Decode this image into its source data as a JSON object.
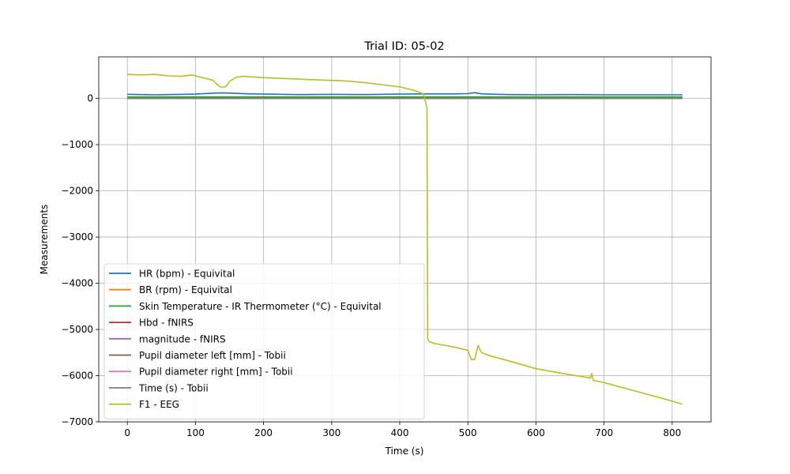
{
  "chart_data": {
    "type": "line",
    "title": "Trial ID: 05-02",
    "xlabel": "Time (s)",
    "ylabel": "Measurements",
    "xlim": [
      -42,
      857
    ],
    "ylim": [
      -7000,
      900
    ],
    "xticks": [
      0,
      100,
      200,
      300,
      400,
      500,
      600,
      700,
      800
    ],
    "yticks": [
      -7000,
      -6000,
      -5000,
      -4000,
      -3000,
      -2000,
      -1000,
      0
    ],
    "ytick_labels": [
      "−7000",
      "−6000",
      "−5000",
      "−4000",
      "−3000",
      "−2000",
      "−1000",
      "0"
    ],
    "grid": true,
    "legend_position": "lower-left",
    "series": [
      {
        "name": "HR (bpm) - Equivital",
        "color": "#1f77b4",
        "x": [
          0,
          20,
          40,
          60,
          80,
          100,
          120,
          140,
          160,
          180,
          200,
          250,
          300,
          350,
          400,
          450,
          480,
          500,
          510,
          520,
          530,
          560,
          600,
          650,
          700,
          750,
          800,
          815
        ],
        "y": [
          90,
          85,
          80,
          85,
          90,
          95,
          110,
          120,
          110,
          100,
          95,
          85,
          90,
          85,
          95,
          100,
          100,
          105,
          125,
          100,
          95,
          85,
          80,
          85,
          80,
          80,
          80,
          80
        ]
      },
      {
        "name": "BR (rpm) - Equivital",
        "color": "#ff7f0e",
        "x": [
          0,
          815
        ],
        "y": [
          20,
          20
        ]
      },
      {
        "name": "Skin Temperature - IR Thermometer (°C) - Equivital",
        "color": "#2ca02c",
        "x": [
          0,
          815
        ],
        "y": [
          33,
          33
        ]
      },
      {
        "name": "Hbd - fNIRS",
        "color": "#d62728",
        "x": [
          0,
          815
        ],
        "y": [
          0,
          0
        ]
      },
      {
        "name": "magnitude - fNIRS",
        "color": "#9467bd",
        "x": [
          0,
          815
        ],
        "y": [
          1,
          1
        ]
      },
      {
        "name": "Pupil diameter left [mm] - Tobii",
        "color": "#8c564b",
        "x": [
          0,
          815
        ],
        "y": [
          4,
          4
        ]
      },
      {
        "name": "Pupil diameter right [mm] - Tobii",
        "color": "#e377c2",
        "x": [
          0,
          815
        ],
        "y": [
          4,
          4
        ]
      },
      {
        "name": "Time (s) - Tobii",
        "color": "#7f7f7f",
        "x": [
          0,
          815
        ],
        "y": [
          0,
          0
        ]
      },
      {
        "name": "F1 - EEG",
        "color": "#bcbd22",
        "x": [
          0,
          20,
          40,
          60,
          80,
          95,
          110,
          125,
          135,
          140,
          145,
          150,
          160,
          170,
          200,
          250,
          300,
          320,
          350,
          400,
          420,
          435,
          440,
          441,
          443,
          450,
          480,
          500,
          505,
          510,
          515,
          520,
          530,
          560,
          600,
          650,
          680,
          682,
          684,
          700,
          750,
          800,
          815
        ],
        "y": [
          520,
          510,
          520,
          490,
          480,
          510,
          450,
          400,
          260,
          240,
          260,
          370,
          460,
          480,
          450,
          420,
          390,
          380,
          340,
          250,
          180,
          100,
          -200,
          -5200,
          -5260,
          -5300,
          -5380,
          -5450,
          -5650,
          -5650,
          -5350,
          -5500,
          -5560,
          -5680,
          -5850,
          -5980,
          -6050,
          -5950,
          -6100,
          -6150,
          -6350,
          -6550,
          -6620
        ]
      }
    ]
  }
}
